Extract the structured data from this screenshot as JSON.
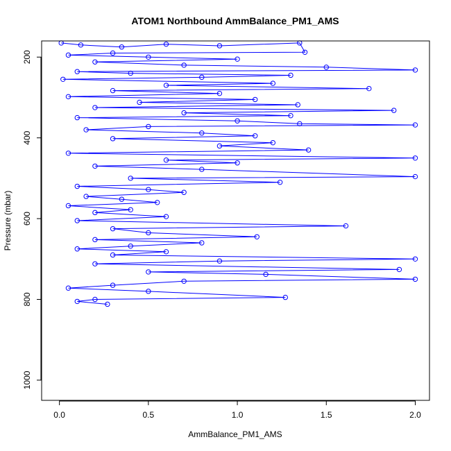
{
  "chart_data": {
    "type": "scatter",
    "title": "ATOM1 Northbound AmmBalance_PM1_AMS",
    "xlabel": "AmmBalance_PM1_AMS",
    "ylabel": "Pressure (mbar)",
    "xlim": [
      -0.1,
      2.08
    ],
    "ylim": [
      1050,
      160
    ],
    "y_reversed": true,
    "xticks": [
      0.0,
      0.5,
      1.0,
      1.5,
      2.0
    ],
    "xtick_labels": [
      "0.0",
      "0.5",
      "1.0",
      "1.5",
      "2.0"
    ],
    "yticks": [
      200,
      400,
      600,
      800,
      1000
    ],
    "ytick_labels": [
      "200",
      "400",
      "600",
      "800",
      "1000"
    ],
    "series": [
      {
        "color": "#0000ff",
        "marker": "open-circle",
        "line": true,
        "points": [
          [
            0.01,
            165
          ],
          [
            0.12,
            170
          ],
          [
            0.35,
            175
          ],
          [
            0.6,
            168
          ],
          [
            0.9,
            172
          ],
          [
            1.35,
            165
          ],
          [
            1.38,
            188
          ],
          [
            0.3,
            190
          ],
          [
            0.05,
            195
          ],
          [
            0.5,
            200
          ],
          [
            1.0,
            205
          ],
          [
            0.2,
            212
          ],
          [
            0.7,
            220
          ],
          [
            1.5,
            225
          ],
          [
            2.0,
            232
          ],
          [
            0.1,
            236
          ],
          [
            0.4,
            240
          ],
          [
            1.3,
            245
          ],
          [
            0.8,
            250
          ],
          [
            0.02,
            255
          ],
          [
            1.2,
            265
          ],
          [
            0.6,
            270
          ],
          [
            1.74,
            278
          ],
          [
            0.3,
            283
          ],
          [
            0.9,
            290
          ],
          [
            0.05,
            298
          ],
          [
            1.1,
            305
          ],
          [
            0.45,
            312
          ],
          [
            1.34,
            318
          ],
          [
            0.2,
            325
          ],
          [
            1.88,
            332
          ],
          [
            0.7,
            338
          ],
          [
            1.3,
            345
          ],
          [
            0.1,
            350
          ],
          [
            1.0,
            358
          ],
          [
            1.35,
            365
          ],
          [
            2.0,
            368
          ],
          [
            0.5,
            372
          ],
          [
            0.15,
            380
          ],
          [
            0.8,
            388
          ],
          [
            1.1,
            395
          ],
          [
            0.3,
            402
          ],
          [
            1.2,
            412
          ],
          [
            0.9,
            420
          ],
          [
            1.4,
            430
          ],
          [
            0.05,
            438
          ],
          [
            2.0,
            450
          ],
          [
            0.6,
            455
          ],
          [
            1.0,
            462
          ],
          [
            0.2,
            470
          ],
          [
            0.8,
            478
          ],
          [
            2.0,
            496
          ],
          [
            0.4,
            500
          ],
          [
            1.24,
            510
          ],
          [
            0.1,
            520
          ],
          [
            0.5,
            528
          ],
          [
            0.7,
            535
          ],
          [
            0.15,
            545
          ],
          [
            0.35,
            552
          ],
          [
            0.55,
            560
          ],
          [
            0.05,
            568
          ],
          [
            0.4,
            578
          ],
          [
            0.2,
            585
          ],
          [
            0.6,
            595
          ],
          [
            0.1,
            605
          ],
          [
            1.61,
            618
          ],
          [
            0.3,
            625
          ],
          [
            0.5,
            635
          ],
          [
            1.11,
            645
          ],
          [
            0.2,
            652
          ],
          [
            0.8,
            660
          ],
          [
            0.4,
            668
          ],
          [
            0.1,
            675
          ],
          [
            0.6,
            682
          ],
          [
            0.3,
            690
          ],
          [
            2.0,
            700
          ],
          [
            0.9,
            705
          ],
          [
            0.2,
            712
          ],
          [
            1.91,
            726
          ],
          [
            0.5,
            732
          ],
          [
            1.16,
            738
          ],
          [
            2.0,
            750
          ],
          [
            0.7,
            755
          ],
          [
            0.3,
            765
          ],
          [
            0.05,
            772
          ],
          [
            0.5,
            780
          ],
          [
            1.27,
            795
          ],
          [
            0.2,
            800
          ],
          [
            0.1,
            805
          ],
          [
            0.27,
            812
          ]
        ]
      }
    ]
  }
}
